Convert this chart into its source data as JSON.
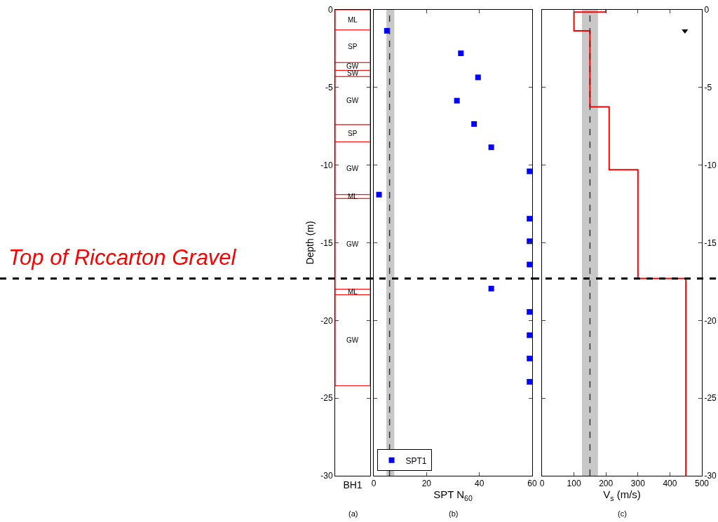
{
  "chart_data": [
    {
      "type": "bar",
      "stacked": true,
      "categories": [
        "BH1"
      ],
      "ylabel": "Depth (m)",
      "ylim": [
        -30,
        0
      ],
      "yticks": [
        0,
        -5,
        -10,
        -15,
        -20,
        -25,
        -30
      ],
      "series": [
        {
          "name": "ML",
          "color": "#ffffff",
          "values": [
            -1.3
          ]
        },
        {
          "name": "SP",
          "color": "#ffffff",
          "values": [
            -2.1
          ]
        },
        {
          "name": "GW",
          "color": "#ffffff",
          "values": [
            -0.5
          ]
        },
        {
          "name": "SW",
          "color": "#ffffff",
          "values": [
            -0.4
          ]
        },
        {
          "name": "GW",
          "color": "#ffffff",
          "values": [
            -3.1
          ]
        },
        {
          "name": "SP",
          "color": "#ffffff",
          "values": [
            -1.1
          ]
        },
        {
          "name": "GW",
          "color": "#ffffff",
          "values": [
            -3.4
          ]
        },
        {
          "name": "ML",
          "color": "#ffffff",
          "values": [
            -0.25
          ]
        },
        {
          "name": "GW",
          "color": "#ffffff",
          "values": [
            -5.85
          ]
        },
        {
          "name": "ML",
          "color": "#ffffff",
          "values": [
            -0.35
          ]
        },
        {
          "name": "GW",
          "color": "#ffffff",
          "values": [
            -5.85
          ]
        }
      ],
      "ref_lines": [
        {
          "axis": "y",
          "value": -17.3,
          "label": "Top of Riccarton Gravel",
          "color": "#000000",
          "line_style": "dashed"
        }
      ],
      "annotations": [
        "(a)"
      ]
    },
    {
      "type": "scatter",
      "xlabel": "SPT N$_{60}$",
      "xlim": [
        0,
        60
      ],
      "xticks": [
        0,
        20,
        40,
        60
      ],
      "ylim": [
        -30,
        0
      ],
      "yticks": [
        0,
        -5,
        -10,
        -15,
        -20,
        -25,
        -30
      ],
      "tick_labels": "x",
      "marker": "square",
      "legend": "bottom left",
      "series": [
        {
          "name": "SPT1",
          "color": "#0000ff",
          "x": [
            5,
            33,
            39.5,
            31.5,
            38,
            44.5,
            59,
            2,
            59,
            59,
            59,
            44.5,
            59,
            59,
            59,
            59
          ],
          "values": [
            -1.35,
            -2.8,
            -4.35,
            -5.85,
            -7.35,
            -8.85,
            -10.4,
            -11.9,
            -13.45,
            -14.9,
            -16.4,
            -17.95,
            -19.45,
            -20.95,
            -22.45,
            -23.95
          ]
        }
      ],
      "bands": [
        {
          "axis": "x",
          "from": 4.8,
          "to": 7.8,
          "color": "#c8c8c8"
        }
      ],
      "ref_lines": [
        {
          "axis": "x",
          "value": 6,
          "color": "#333333",
          "line_style": "dashed"
        },
        {
          "axis": "y",
          "value": -17.3,
          "color": "#000000",
          "line_style": "dashed"
        }
      ],
      "annotations": [
        "(b)"
      ]
    },
    {
      "type": "line",
      "xlabel": "V$_{s}$ (m/s)",
      "xlim": [
        0,
        500
      ],
      "xticks": [
        0,
        100,
        200,
        300,
        400,
        500
      ],
      "ylim": [
        -30,
        0
      ],
      "yticks": [
        0,
        -5,
        -10,
        -15,
        -20,
        -25,
        -30
      ],
      "marker": "none",
      "line_style": "solid",
      "series": [
        {
          "color": "#ff0000",
          "x": [
            200,
            200,
            100,
            100,
            150,
            150,
            210,
            210,
            300,
            300,
            450,
            450
          ],
          "values": [
            0,
            -0.15,
            -0.15,
            -1.35,
            -1.35,
            -6.25,
            -6.25,
            -10.3,
            -10.3,
            -17.3,
            -17.3,
            -30
          ]
        },
        {
          "type": "scatter",
          "marker": "triangle",
          "color": "#000000",
          "x": [
            447
          ],
          "values": [
            -1.35
          ]
        }
      ],
      "bands": [
        {
          "axis": "x",
          "from": 125,
          "to": 175,
          "color": "#c8c8c8"
        }
      ],
      "ref_lines": [
        {
          "axis": "x",
          "value": 150,
          "color": "#333333",
          "line_style": "dashed"
        },
        {
          "axis": "y",
          "value": -17.3,
          "color": "#000000",
          "line_style": "dashed"
        }
      ],
      "annotations": [
        "(c)"
      ]
    }
  ]
}
